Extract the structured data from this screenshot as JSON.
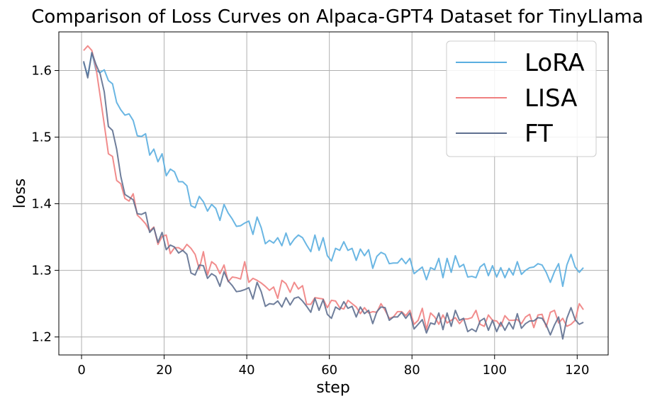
{
  "chart_data": {
    "type": "line",
    "title": "Comparison of Loss Curves on Alpaca-GPT4 Dataset for TinyLlama",
    "xlabel": "step",
    "ylabel": "loss",
    "xlim": [
      -5.5,
      127.5
    ],
    "ylim": [
      1.173,
      1.658
    ],
    "xticks": [
      0,
      20,
      40,
      60,
      80,
      100,
      120
    ],
    "yticks": [
      1.2,
      1.3,
      1.4,
      1.5,
      1.6
    ],
    "xtick_labels": [
      "0",
      "20",
      "40",
      "60",
      "80",
      "100",
      "120"
    ],
    "ytick_labels": [
      "1.2",
      "1.3",
      "1.4",
      "1.5",
      "1.6"
    ],
    "grid": true,
    "legend_position": "top-right",
    "x": [
      0.5,
      1.5,
      2.5,
      3.5,
      4.5,
      5.5,
      6.5,
      7.5,
      8.5,
      9.5,
      10.5,
      11.5,
      12.5,
      13.5,
      14.5,
      15.5,
      16.5,
      17.5,
      18.5,
      19.5,
      20.5,
      21.5,
      22.5,
      23.5,
      24.5,
      25.5,
      26.5,
      27.5,
      28.5,
      29.5,
      30.5,
      31.5,
      32.5,
      33.5,
      34.5,
      35.5,
      36.5,
      37.5,
      38.5,
      39.5,
      40.5,
      41.5,
      42.5,
      43.5,
      44.5,
      45.5,
      46.5,
      47.5,
      48.5,
      49.5,
      50.5,
      51.5,
      52.5,
      53.5,
      54.5,
      55.5,
      56.5,
      57.5,
      58.5,
      59.5,
      60.5,
      61.5,
      62.5,
      63.5,
      64.5,
      65.5,
      66.5,
      67.5,
      68.5,
      69.5,
      70.5,
      71.5,
      72.5,
      73.5,
      74.5,
      75.5,
      76.5,
      77.5,
      78.5,
      79.5,
      80.5,
      81.5,
      82.5,
      83.5,
      84.5,
      85.5,
      86.5,
      87.5,
      88.5,
      89.5,
      90.5,
      91.5,
      92.5,
      93.5,
      94.5,
      95.5,
      96.5,
      97.5,
      98.5,
      99.5,
      100.5,
      101.5,
      102.5,
      103.5,
      104.5,
      105.5,
      106.5,
      107.5,
      108.5,
      109.5,
      110.5,
      111.5,
      112.5,
      113.5,
      114.5,
      115.5,
      116.5,
      117.5,
      118.5,
      119.5,
      120.5,
      121.5
    ],
    "series": [
      {
        "name": "LoRA",
        "color": "#5aaee0",
        "values": [
          1.612,
          1.592,
          1.627,
          1.6,
          1.597,
          1.601,
          1.585,
          1.58,
          1.552,
          1.541,
          1.533,
          1.535,
          1.525,
          1.502,
          1.501,
          1.505,
          1.473,
          1.482,
          1.463,
          1.475,
          1.442,
          1.452,
          1.448,
          1.433,
          1.433,
          1.427,
          1.397,
          1.394,
          1.411,
          1.403,
          1.389,
          1.399,
          1.393,
          1.375,
          1.399,
          1.386,
          1.377,
          1.366,
          1.367,
          1.371,
          1.374,
          1.354,
          1.38,
          1.364,
          1.34,
          1.345,
          1.341,
          1.349,
          1.337,
          1.356,
          1.338,
          1.347,
          1.353,
          1.349,
          1.338,
          1.328,
          1.353,
          1.33,
          1.349,
          1.322,
          1.314,
          1.333,
          1.33,
          1.343,
          1.33,
          1.333,
          1.315,
          1.332,
          1.322,
          1.331,
          1.303,
          1.321,
          1.327,
          1.324,
          1.31,
          1.311,
          1.311,
          1.318,
          1.31,
          1.318,
          1.295,
          1.3,
          1.305,
          1.286,
          1.304,
          1.301,
          1.318,
          1.289,
          1.318,
          1.297,
          1.322,
          1.305,
          1.309,
          1.29,
          1.291,
          1.289,
          1.305,
          1.31,
          1.292,
          1.307,
          1.29,
          1.304,
          1.289,
          1.303,
          1.293,
          1.313,
          1.294,
          1.3,
          1.304,
          1.305,
          1.31,
          1.308,
          1.297,
          1.282,
          1.298,
          1.31,
          1.276,
          1.308,
          1.324,
          1.305,
          1.297,
          1.304
        ]
      },
      {
        "name": "LISA",
        "color": "#f08080",
        "values": [
          1.63,
          1.637,
          1.63,
          1.604,
          1.562,
          1.519,
          1.475,
          1.471,
          1.435,
          1.43,
          1.408,
          1.404,
          1.415,
          1.383,
          1.377,
          1.37,
          1.359,
          1.365,
          1.339,
          1.351,
          1.353,
          1.325,
          1.334,
          1.334,
          1.33,
          1.339,
          1.333,
          1.324,
          1.302,
          1.328,
          1.293,
          1.313,
          1.308,
          1.295,
          1.308,
          1.283,
          1.29,
          1.289,
          1.287,
          1.313,
          1.282,
          1.288,
          1.285,
          1.281,
          1.276,
          1.27,
          1.275,
          1.258,
          1.285,
          1.28,
          1.267,
          1.282,
          1.272,
          1.277,
          1.249,
          1.249,
          1.259,
          1.258,
          1.257,
          1.244,
          1.255,
          1.254,
          1.244,
          1.242,
          1.255,
          1.25,
          1.245,
          1.235,
          1.244,
          1.236,
          1.238,
          1.237,
          1.25,
          1.24,
          1.228,
          1.23,
          1.238,
          1.238,
          1.232,
          1.24,
          1.219,
          1.225,
          1.243,
          1.211,
          1.236,
          1.23,
          1.219,
          1.233,
          1.221,
          1.225,
          1.229,
          1.22,
          1.227,
          1.227,
          1.229,
          1.24,
          1.219,
          1.216,
          1.233,
          1.225,
          1.224,
          1.216,
          1.232,
          1.225,
          1.225,
          1.226,
          1.22,
          1.23,
          1.234,
          1.214,
          1.233,
          1.234,
          1.215,
          1.237,
          1.24,
          1.221,
          1.228,
          1.216,
          1.219,
          1.225,
          1.25,
          1.241
        ]
      },
      {
        "name": "FT",
        "color": "#5f7090",
        "values": [
          1.614,
          1.589,
          1.627,
          1.609,
          1.595,
          1.568,
          1.516,
          1.51,
          1.482,
          1.441,
          1.414,
          1.41,
          1.406,
          1.385,
          1.384,
          1.387,
          1.357,
          1.364,
          1.342,
          1.357,
          1.331,
          1.338,
          1.335,
          1.326,
          1.33,
          1.324,
          1.296,
          1.293,
          1.308,
          1.307,
          1.288,
          1.295,
          1.291,
          1.276,
          1.298,
          1.284,
          1.277,
          1.268,
          1.269,
          1.271,
          1.274,
          1.257,
          1.282,
          1.268,
          1.246,
          1.25,
          1.249,
          1.254,
          1.245,
          1.259,
          1.248,
          1.258,
          1.26,
          1.254,
          1.246,
          1.237,
          1.258,
          1.24,
          1.256,
          1.234,
          1.228,
          1.245,
          1.241,
          1.253,
          1.243,
          1.246,
          1.23,
          1.245,
          1.235,
          1.24,
          1.22,
          1.238,
          1.245,
          1.244,
          1.225,
          1.23,
          1.23,
          1.237,
          1.228,
          1.236,
          1.212,
          1.219,
          1.226,
          1.206,
          1.221,
          1.219,
          1.236,
          1.211,
          1.236,
          1.216,
          1.24,
          1.225,
          1.228,
          1.208,
          1.212,
          1.208,
          1.224,
          1.228,
          1.21,
          1.225,
          1.208,
          1.222,
          1.21,
          1.222,
          1.212,
          1.235,
          1.213,
          1.22,
          1.224,
          1.224,
          1.229,
          1.228,
          1.218,
          1.203,
          1.218,
          1.23,
          1.197,
          1.228,
          1.244,
          1.226,
          1.219,
          1.222
        ]
      }
    ]
  }
}
